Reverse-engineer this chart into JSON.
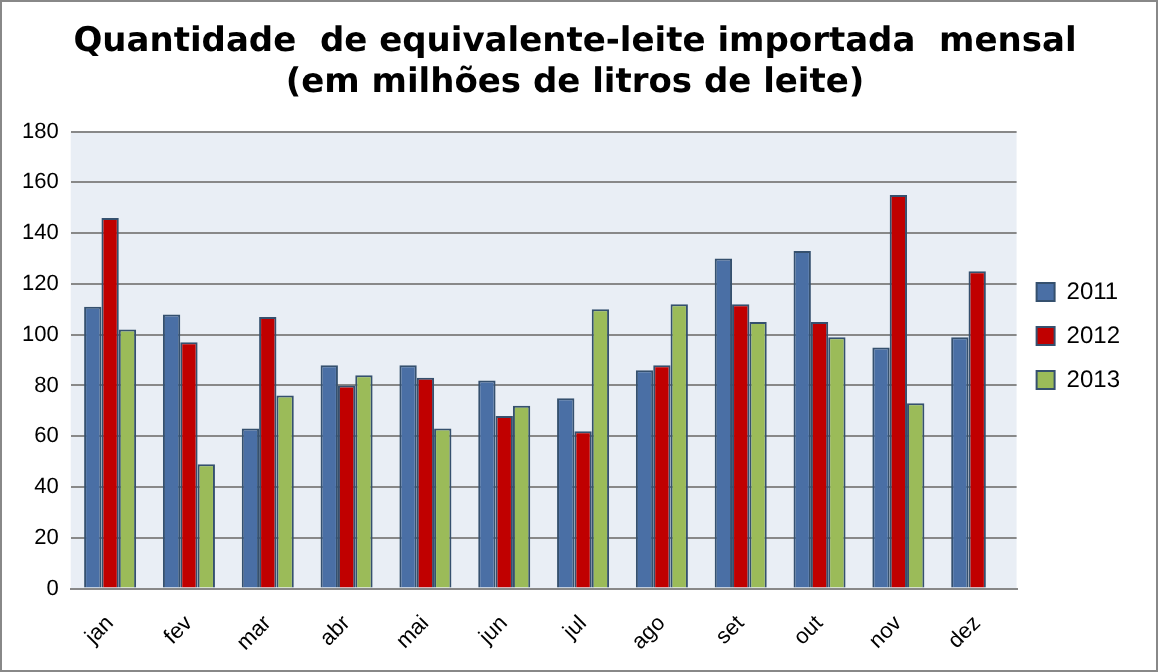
{
  "chart_data": {
    "type": "bar",
    "title": "Quantidade  de equivalente-leite importada  mensal\n(em milhões de litros de leite)",
    "categories": [
      "jan",
      "fev",
      "mar",
      "abr",
      "mai",
      "jun",
      "jul",
      "ago",
      "set",
      "out",
      "nov",
      "dez"
    ],
    "series": [
      {
        "name": "2011",
        "color": "#4a6fa5",
        "values": [
          111,
          108,
          63,
          88,
          88,
          82,
          75,
          86,
          130,
          133,
          95,
          99
        ]
      },
      {
        "name": "2012",
        "color": "#c00000",
        "values": [
          146,
          97,
          107,
          80,
          83,
          68,
          62,
          88,
          112,
          105,
          155,
          125
        ]
      },
      {
        "name": "2013",
        "color": "#9bbb59",
        "values": [
          102,
          49,
          76,
          84,
          63,
          72,
          110,
          112,
          105,
          99,
          73,
          null
        ]
      }
    ],
    "ylim": [
      0,
      180
    ],
    "yticks": [
      0,
      20,
      40,
      60,
      80,
      100,
      120,
      140,
      160,
      180
    ],
    "grid": "y",
    "legend": "right"
  }
}
